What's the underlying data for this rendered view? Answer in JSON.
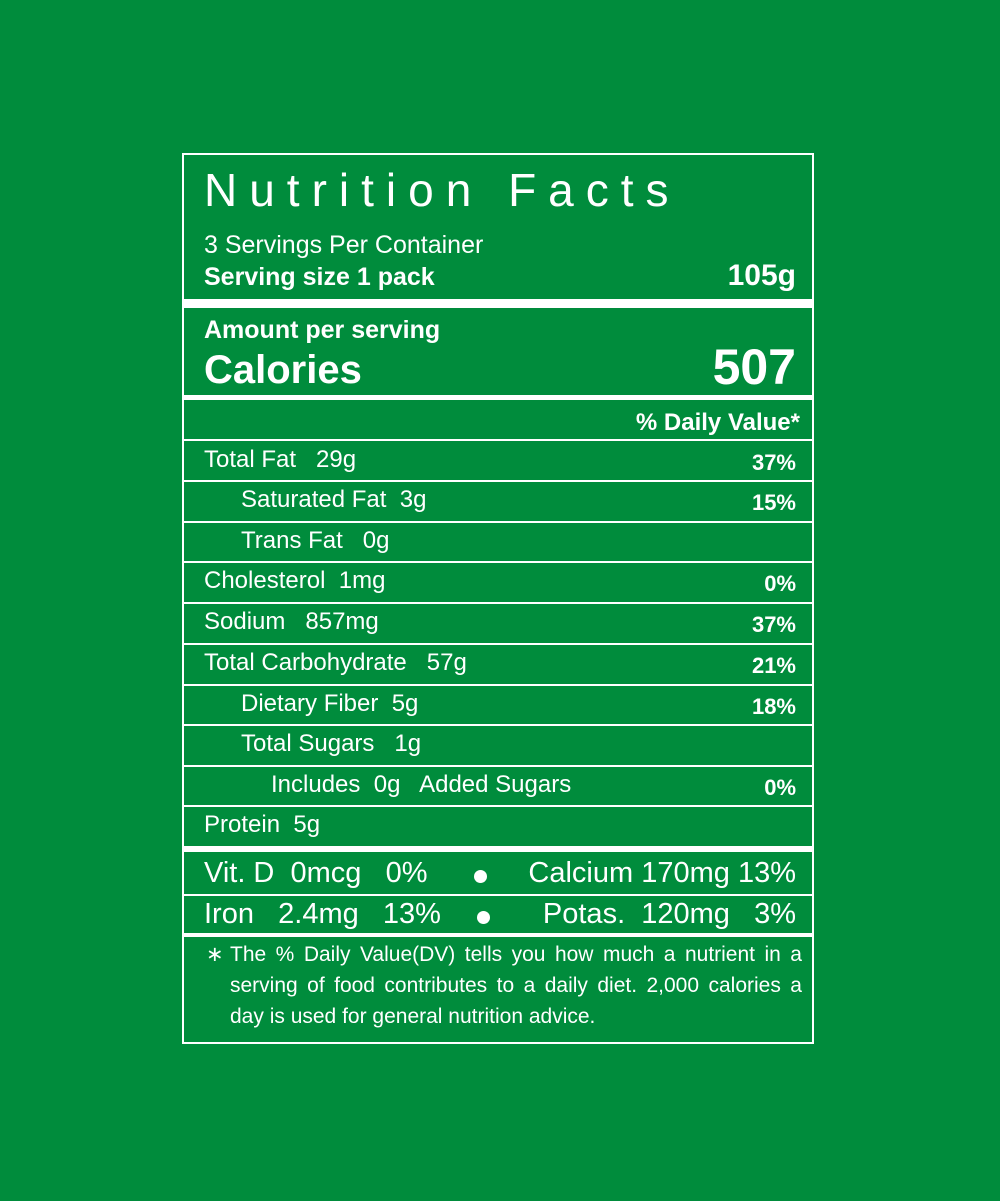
{
  "label": {
    "title": "Nutrition Facts",
    "servings_per_container": "3 Servings Per Container",
    "serving_size_label": "Serving size 1 pack",
    "serving_size_value": "105g",
    "amount_per_serving": "Amount per serving",
    "calories_label": "Calories",
    "calories_value": "507",
    "daily_value_header": "% Daily Value*",
    "nutrients": [
      {
        "name": "Total Fat   29g",
        "dv": "37%"
      },
      {
        "name": "Saturated Fat  3g",
        "dv": "15%"
      },
      {
        "name": "Trans Fat   0g",
        "dv": ""
      },
      {
        "name": "Cholesterol  1mg",
        "dv": "0%"
      },
      {
        "name": "Sodium   857mg",
        "dv": "37%"
      },
      {
        "name": "Total Carbohydrate   57g",
        "dv": "21%"
      },
      {
        "name": "Dietary Fiber  5g",
        "dv": "18%"
      },
      {
        "name": "Total Sugars   1g",
        "dv": ""
      },
      {
        "name": "Includes  0g   Added Sugars",
        "dv": "0%"
      },
      {
        "name": "Protein  5g",
        "dv": ""
      }
    ],
    "vitamins": [
      {
        "left": "Vit. D  0mcg   0%",
        "right": "Calcium 170mg 13%"
      },
      {
        "left": "Iron   2.4mg   13%",
        "right": "Potas.  120mg   3%"
      }
    ],
    "footnote_mark": "∗",
    "footnote": "The % Daily Value(DV) tells you how much a nutrient in a serving of food contributes to a daily diet. 2,000 calories a day is used for general nutrition advice."
  },
  "colors": {
    "background": "#008c3c",
    "foreground": "#ffffff"
  }
}
